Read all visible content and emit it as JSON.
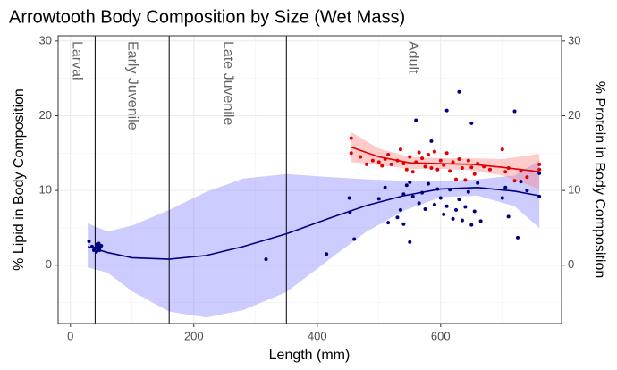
{
  "chart_data": {
    "type": "scatter",
    "title": "Arrowtooth Body Composition by Size (Wet Mass)",
    "x_label": "Length (mm)",
    "y_label": "% Lipid in Body Composition",
    "y2_label": "% Protein in Body Composition",
    "xlim": [
      -20,
      796
    ],
    "xticks": [
      0,
      200,
      400,
      600
    ],
    "xminor": [
      100,
      300,
      500,
      700
    ],
    "ylim": [
      -7.8,
      30.7
    ],
    "yticks": [
      0,
      10,
      20,
      30
    ],
    "yminor": [
      -5,
      5,
      15,
      25
    ],
    "y2lim": [
      -7.8,
      30.7
    ],
    "y2ticks": [
      0,
      10,
      20,
      30
    ],
    "grid": true,
    "vlines": [
      40,
      160,
      350
    ],
    "stages": [
      "Larval",
      "Early Juvenile",
      "Late Juvenile",
      "Adult"
    ],
    "series": [
      {
        "color": "#00007f",
        "axis": "y",
        "x": [
          30,
          35,
          38,
          40,
          42,
          44,
          45,
          46,
          48,
          50,
          47,
          43,
          317,
          415,
          452,
          453,
          460,
          500,
          510,
          515,
          530,
          535,
          540,
          540,
          545,
          550,
          550,
          555,
          560,
          565,
          570,
          575,
          580,
          585,
          590,
          595,
          600,
          605,
          610,
          610,
          615,
          620,
          625,
          630,
          630,
          635,
          640,
          645,
          650,
          650,
          655,
          660,
          665,
          700,
          705,
          710,
          720,
          725,
          730,
          740,
          760,
          760
        ],
        "values": [
          3.2,
          2.5,
          2.0,
          2.3,
          1.8,
          2.6,
          2.2,
          2.9,
          2.4,
          2.6,
          2.0,
          2.8,
          0.8,
          1.5,
          9.0,
          7.1,
          3.5,
          8.9,
          10.4,
          5.7,
          6.4,
          7.4,
          9.5,
          5.5,
          10.7,
          11.1,
          3.1,
          9.2,
          19.4,
          8.3,
          9.7,
          7.5,
          10.9,
          16.6,
          8.1,
          10.2,
          9.0,
          6.8,
          20.7,
          7.9,
          10.1,
          6.2,
          7.4,
          23.2,
          8.8,
          6.0,
          7.8,
          9.8,
          5.4,
          19.0,
          7.2,
          11.0,
          5.9,
          9.0,
          10.4,
          6.5,
          20.6,
          3.7,
          11.2,
          10.0,
          12.3,
          9.2
        ]
      },
      {
        "color": "#e00000",
        "axis": "y2",
        "x": [
          455,
          455,
          470,
          480,
          490,
          500,
          505,
          510,
          515,
          520,
          530,
          535,
          540,
          545,
          550,
          555,
          560,
          565,
          570,
          575,
          580,
          585,
          590,
          595,
          600,
          605,
          610,
          615,
          620,
          625,
          630,
          635,
          640,
          645,
          650,
          655,
          660,
          670,
          680,
          700,
          705,
          710,
          720,
          730,
          740,
          760,
          760
        ],
        "values": [
          17.0,
          15.0,
          14.5,
          13.5,
          14.0,
          13.8,
          13.3,
          14.2,
          14.8,
          13.5,
          14.0,
          15.5,
          13.6,
          12.8,
          14.5,
          12.5,
          13.8,
          15.1,
          14.3,
          13.2,
          14.8,
          13.0,
          15.2,
          12.8,
          14.0,
          13.4,
          15.0,
          12.6,
          13.8,
          11.5,
          14.2,
          13.0,
          11.4,
          14.0,
          13.1,
          12.2,
          13.6,
          13.2,
          12.8,
          15.5,
          12.5,
          13.0,
          11.3,
          12.6,
          11.8,
          13.5,
          12.8
        ]
      }
    ],
    "fits": [
      {
        "color": "#000080",
        "band_color": "#8080ff",
        "x": [
          28,
          60,
          100,
          160,
          220,
          280,
          350,
          420,
          480,
          540,
          600,
          660,
          720,
          760
        ],
        "values": [
          2.5,
          1.7,
          1.0,
          0.8,
          1.3,
          2.5,
          4.2,
          6.3,
          8.0,
          9.3,
          10.2,
          10.4,
          9.9,
          9.3
        ],
        "upper": [
          5.6,
          4.5,
          5.3,
          7.4,
          9.8,
          11.6,
          12.2,
          11.8,
          11.5,
          11.3,
          11.3,
          11.5,
          12.0,
          14.0
        ],
        "lower": [
          -0.3,
          -1.0,
          -3.5,
          -6.2,
          -7.0,
          -6.0,
          -3.6,
          0.8,
          4.5,
          7.3,
          9.1,
          9.3,
          7.9,
          5.0
        ]
      },
      {
        "color": "#e00000",
        "band_color": "#ff8080",
        "x": [
          455,
          500,
          550,
          600,
          650,
          700,
          760
        ],
        "values": [
          15.8,
          14.5,
          13.7,
          13.6,
          13.5,
          13.1,
          12.5
        ],
        "upper": [
          17.8,
          15.6,
          14.5,
          14.3,
          14.3,
          14.2,
          14.9
        ],
        "lower": [
          13.8,
          13.4,
          12.9,
          12.9,
          12.7,
          12.0,
          10.2
        ]
      }
    ]
  }
}
